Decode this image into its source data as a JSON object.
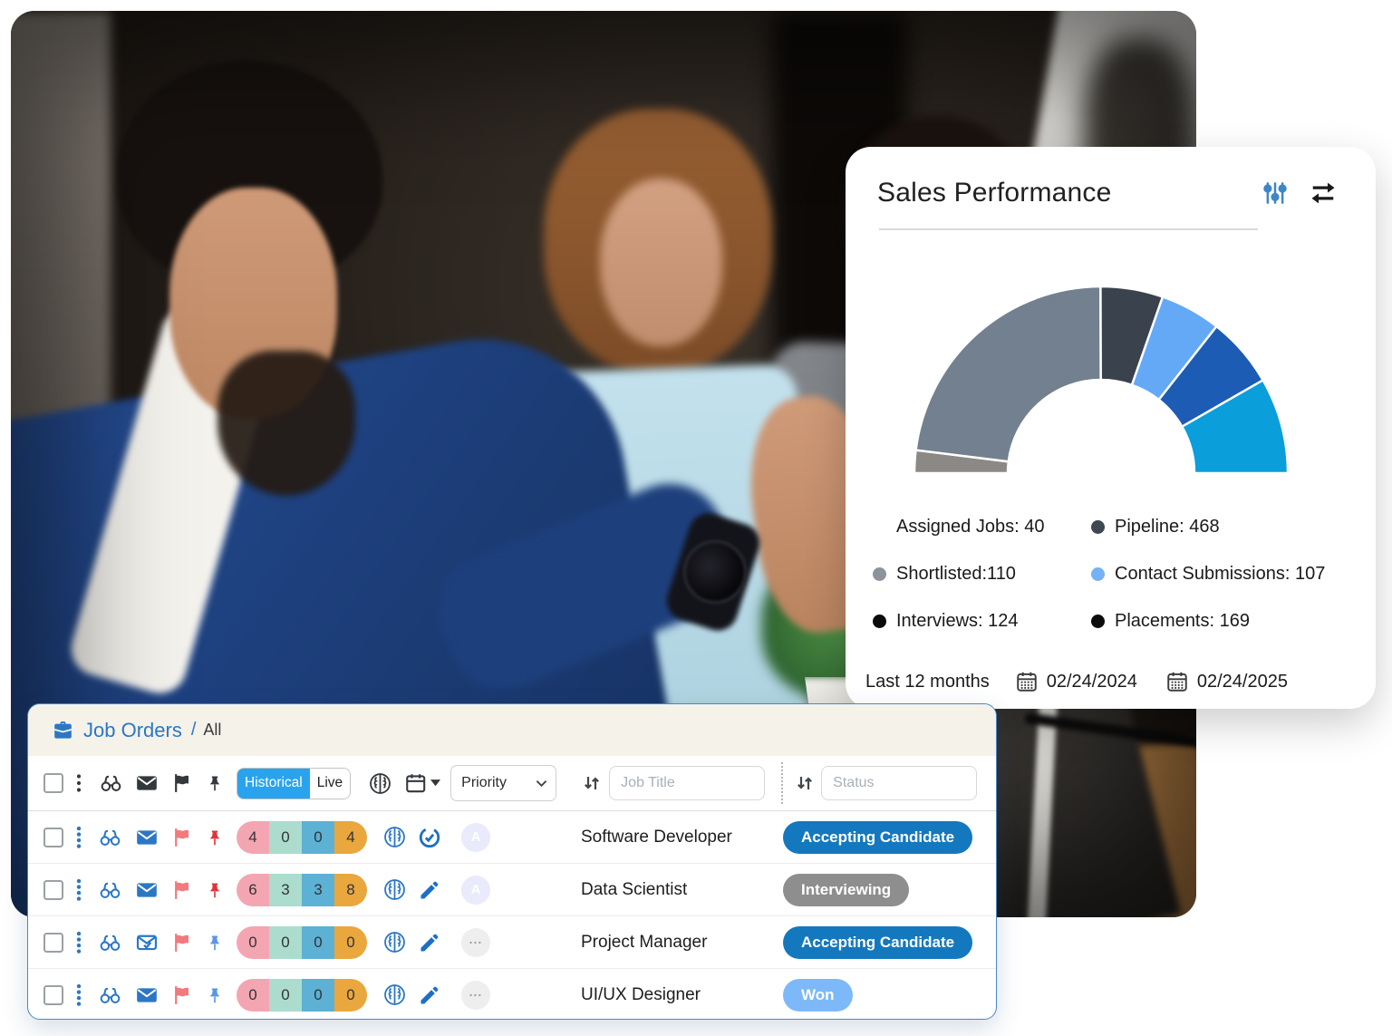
{
  "chart_data": {
    "type": "pie",
    "variant": "semicircle-donut-gauge",
    "title": "Sales Performance",
    "sweep_degrees": 180,
    "inner_radius_ratio": 0.5,
    "segments": [
      {
        "label": "Assigned Jobs",
        "value": 40,
        "color": "#8b8885"
      },
      {
        "label": "Pipeline",
        "value": 468,
        "color": "#72808f"
      },
      {
        "label": "Shortlisted",
        "value": 110,
        "color": "#3a424e"
      },
      {
        "label": "Contact Submissions",
        "value": 107,
        "color": "#64a9f6"
      },
      {
        "label": "Interviews",
        "value": 124,
        "color": "#1c5cb4"
      },
      {
        "label": "Placements",
        "value": 169,
        "color": "#0a9edb"
      }
    ],
    "legend_position": "below"
  },
  "sales_card": {
    "title": "Sales Performance",
    "legend": [
      {
        "text": "Assigned Jobs: 40",
        "dot": null
      },
      {
        "text": "Pipeline: 468",
        "dot": "#3f4753"
      },
      {
        "text": "Shortlisted:110",
        "dot": "#8d9399"
      },
      {
        "text": "Contact Submissions: 107",
        "dot": "#74b2f8"
      },
      {
        "text": "Interviews: 124",
        "dot": "#0b0b0b"
      },
      {
        "text": "Placements: 169",
        "dot": "#0b0b0b"
      }
    ],
    "footer": {
      "range_label": "Last 12 months",
      "start_date": "02/24/2024",
      "end_date": "02/24/2025"
    }
  },
  "job_orders": {
    "breadcrumb": {
      "title": "Job Orders",
      "separator": "/",
      "current": "All"
    },
    "toolbar": {
      "toggle": {
        "historical": "Historical",
        "live": "Live",
        "selected": "Historical",
        "active_color": "#29a3ee"
      },
      "priority_label": "Priority",
      "job_title_placeholder": "Job Title",
      "status_placeholder": "Status"
    },
    "pill_colors": [
      "#f4a5b2",
      "#abdcce",
      "#5cb1d4",
      "#e9a73e"
    ],
    "pin_colors": {
      "red": "#e13438",
      "blue": "#5a96e8"
    },
    "accent_color": "#2b77c5",
    "rows": [
      {
        "counts": [
          "4",
          "0",
          "0",
          "4"
        ],
        "envelope": "filled",
        "pin": "red",
        "action": "sync-check",
        "avatar": "A",
        "avatar_style": "lavender",
        "title": "Software Developer",
        "status": {
          "label": "Accepting Candidate",
          "bg": "#1478be",
          "fg": "#ffffff"
        }
      },
      {
        "counts": [
          "6",
          "3",
          "3",
          "8"
        ],
        "envelope": "filled",
        "pin": "red",
        "action": "edit",
        "avatar": "A",
        "avatar_style": "lavender",
        "title": "Data Scientist",
        "status": {
          "label": "Interviewing",
          "bg": "#8e8e8e",
          "fg": "#ffffff"
        }
      },
      {
        "counts": [
          "0",
          "0",
          "0",
          "0"
        ],
        "envelope": "outline-check",
        "pin": "blue",
        "action": "edit",
        "avatar": "...",
        "avatar_style": "gray",
        "title": "Project Manager",
        "status": {
          "label": "Accepting Candidate",
          "bg": "#1478be",
          "fg": "#ffffff"
        }
      },
      {
        "counts": [
          "0",
          "0",
          "0",
          "0"
        ],
        "envelope": "filled",
        "pin": "blue",
        "action": "edit",
        "avatar": "...",
        "avatar_style": "gray",
        "title": "UI/UX Designer",
        "status": {
          "label": "Won",
          "bg": "#7db9f8",
          "fg": "#ffffff"
        }
      }
    ]
  }
}
